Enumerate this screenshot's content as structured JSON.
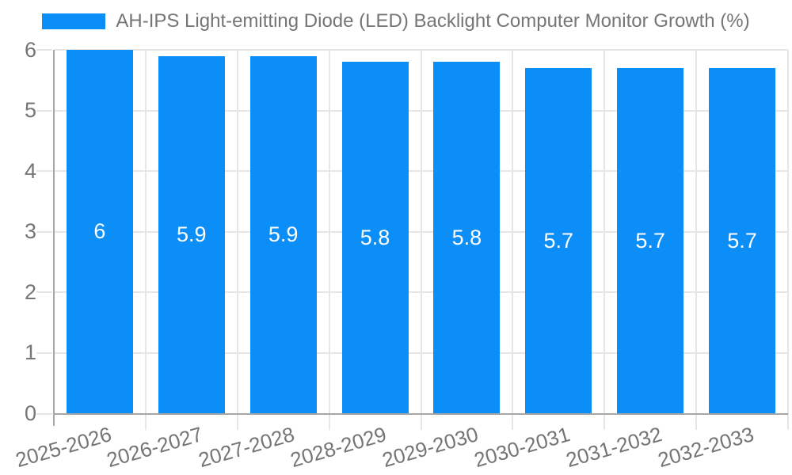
{
  "chart_data": {
    "type": "bar",
    "title": "AH-IPS Light-emitting Diode (LED) Backlight Computer Monitor Growth (%)",
    "categories": [
      "2025-2026",
      "2026-2027",
      "2027-2028",
      "2028-2029",
      "2029-2030",
      "2030-2031",
      "2031-2032",
      "2032-2033"
    ],
    "values": [
      6,
      5.9,
      5.9,
      5.8,
      5.8,
      5.7,
      5.7,
      5.7
    ],
    "bar_labels": [
      "6",
      "5.9",
      "5.9",
      "5.8",
      "5.8",
      "5.7",
      "5.7",
      "5.7"
    ],
    "ylabel": "",
    "xlabel": "",
    "ylim": [
      0,
      6
    ],
    "yticks": [
      0,
      1,
      2,
      3,
      4,
      5,
      6
    ],
    "grid": true,
    "legend_position": "top-center",
    "colors": {
      "bar": "#0b8ef8",
      "bar_label": "#ffffff",
      "axis_text": "#757575",
      "grid": "#e6e6e6",
      "axis_line": "#a6a6a6"
    }
  }
}
